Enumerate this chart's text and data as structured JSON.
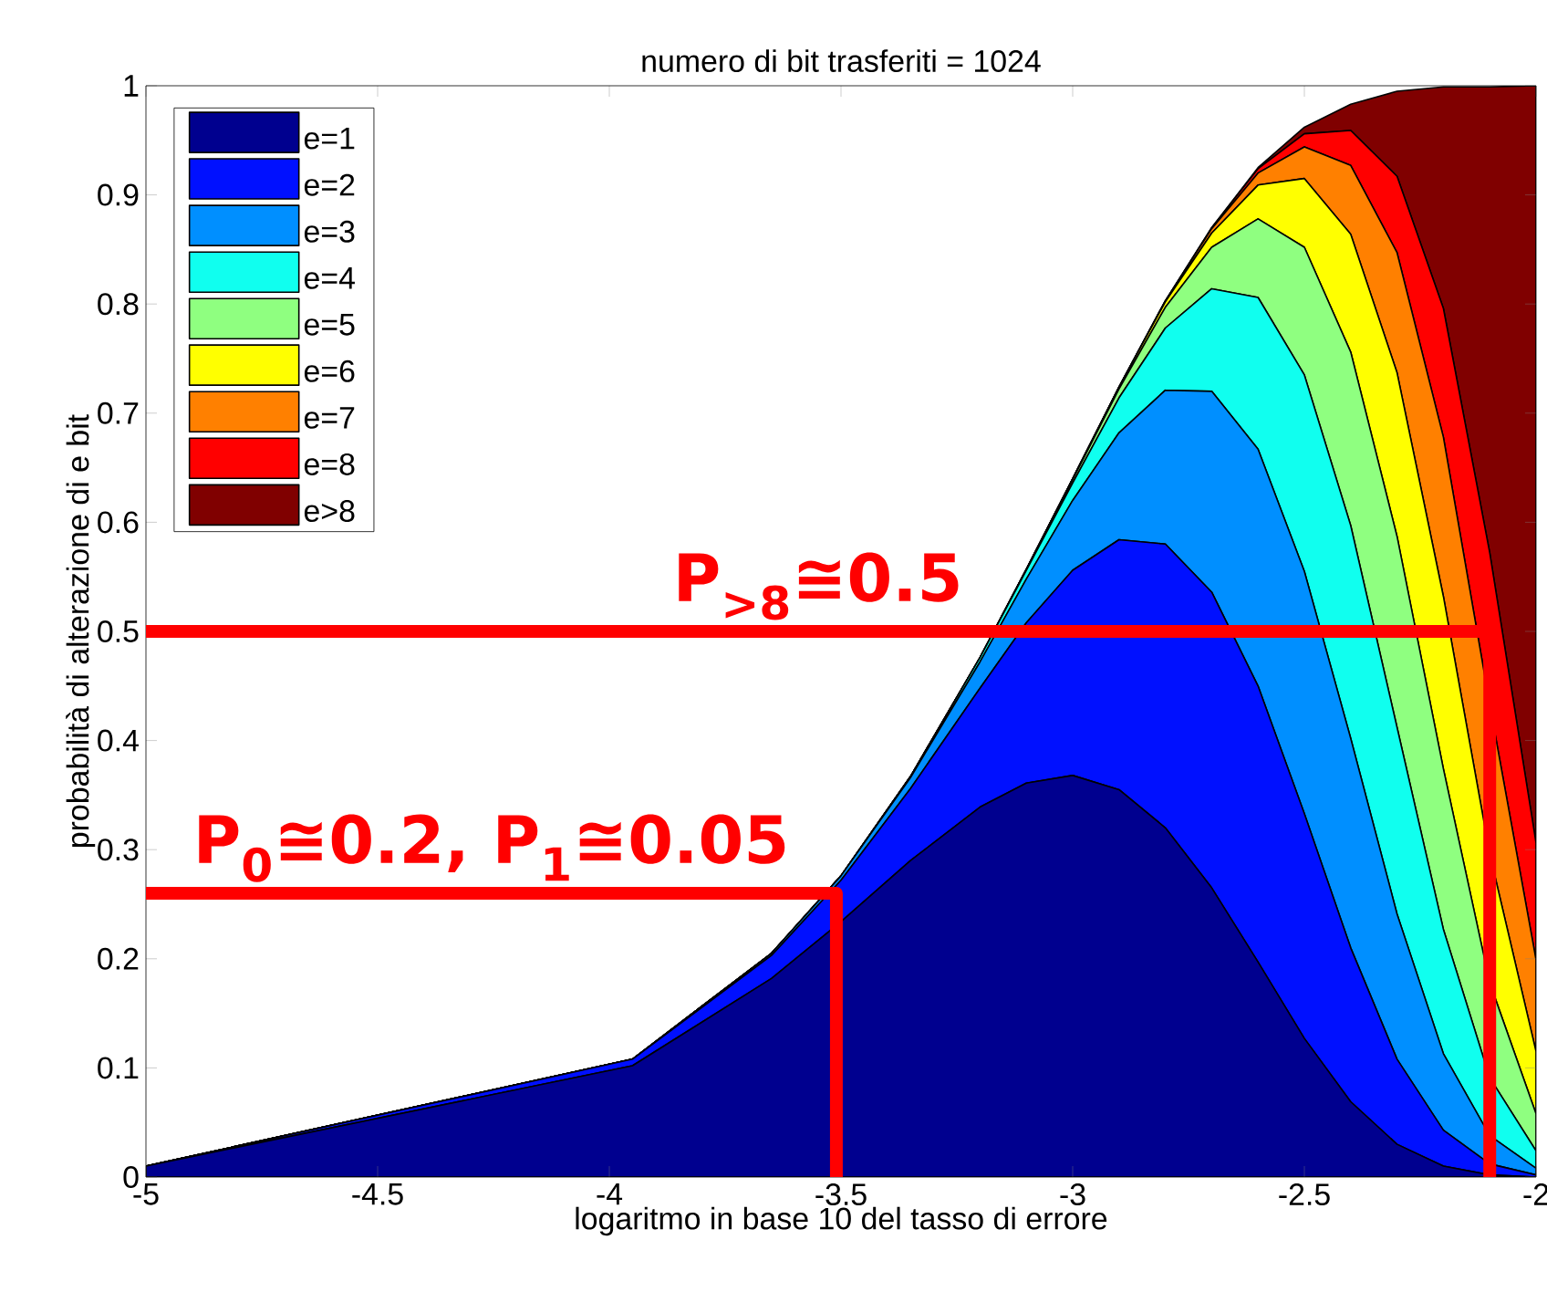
{
  "chart_data": {
    "type": "area",
    "stacked": true,
    "title": "numero di bit trasferiti = 1024",
    "xlabel": "logaritmo in base 10 del tasso di errore",
    "ylabel": "probabilità di alterazione di e bit",
    "x": [
      -5,
      -3.95,
      -3.65,
      -3.5,
      -3.35,
      -3.2,
      -3.1,
      -3.0,
      -2.9,
      -2.8,
      -2.7,
      -2.6,
      -2.5,
      -2.4,
      -2.3,
      -2.2,
      -2.1,
      -2.0
    ],
    "series": [
      {
        "name": "e=1",
        "color": "#00008f",
        "values": [
          0.01,
          0.102,
          0.182,
          0.234,
          0.29,
          0.339,
          0.361,
          0.368,
          0.355,
          0.32,
          0.265,
          0.197,
          0.127,
          0.069,
          0.03,
          0.01,
          0.002,
          0.0
        ]
      },
      {
        "name": "e=2",
        "color": "#0010ff",
        "values": [
          0,
          0.006,
          0.021,
          0.038,
          0.066,
          0.109,
          0.147,
          0.188,
          0.229,
          0.26,
          0.271,
          0.253,
          0.206,
          0.141,
          0.078,
          0.033,
          0.01,
          0.002
        ]
      },
      {
        "name": "e=3",
        "color": "#008fff",
        "values": [
          0,
          0,
          0.002,
          0.004,
          0.01,
          0.024,
          0.04,
          0.064,
          0.098,
          0.141,
          0.184,
          0.217,
          0.222,
          0.192,
          0.133,
          0.07,
          0.026,
          0.006
        ]
      },
      {
        "name": "e=4",
        "color": "#10ffef",
        "values": [
          0,
          0,
          0,
          0,
          0.001,
          0.004,
          0.008,
          0.016,
          0.032,
          0.057,
          0.094,
          0.139,
          0.18,
          0.195,
          0.171,
          0.114,
          0.053,
          0.016
        ]
      },
      {
        "name": "e=5",
        "color": "#8fff80",
        "values": [
          0,
          0,
          0,
          0,
          0,
          0,
          0.001,
          0.003,
          0.008,
          0.019,
          0.038,
          0.072,
          0.117,
          0.159,
          0.175,
          0.147,
          0.087,
          0.034
        ]
      },
      {
        "name": "e=6",
        "color": "#ffff00",
        "values": [
          0,
          0,
          0,
          0,
          0,
          0,
          0,
          0.001,
          0.002,
          0.005,
          0.013,
          0.031,
          0.063,
          0.108,
          0.15,
          0.158,
          0.118,
          0.057
        ]
      },
      {
        "name": "e=7",
        "color": "#ff8000",
        "values": [
          0,
          0,
          0,
          0,
          0,
          0,
          0,
          0,
          0,
          0.001,
          0.004,
          0.011,
          0.029,
          0.063,
          0.11,
          0.146,
          0.137,
          0.084
        ]
      },
      {
        "name": "e=8",
        "color": "#ff0000",
        "values": [
          0,
          0,
          0,
          0,
          0,
          0,
          0,
          0,
          0,
          0,
          0.001,
          0.004,
          0.012,
          0.032,
          0.07,
          0.118,
          0.139,
          0.107
        ]
      },
      {
        "name": "e>8",
        "color": "#800000",
        "values": [
          0,
          0,
          0,
          0,
          0,
          0,
          0,
          0,
          0,
          0,
          0,
          0.001,
          0.006,
          0.024,
          0.078,
          0.203,
          0.427,
          0.694
        ]
      },
      {
        "type": "line",
        "color": "#ff0000",
        "x": [
          -5,
          -2.1,
          -2.1
        ],
        "values": [
          0.5,
          0.5,
          0
        ]
      },
      {
        "type": "line",
        "color": "#ff0000",
        "x": [
          -5,
          -3.51,
          -3.51
        ],
        "values": [
          0.26,
          0.26,
          0
        ]
      }
    ],
    "xlim": [
      -5,
      -2
    ],
    "ylim": [
      0,
      1
    ],
    "xticks": [
      -5,
      -4.5,
      -4,
      -3.5,
      -3,
      -2.5,
      -2
    ],
    "yticks": [
      0,
      0.1,
      0.2,
      0.3,
      0.4,
      0.5,
      0.6,
      0.7,
      0.8,
      0.9,
      1
    ],
    "legend": "top left",
    "grid": false,
    "annotations": [
      "P$_{>8}$≅0.5",
      "P$_{0}$≅0.2, P$_{1}$≅0.05"
    ]
  }
}
